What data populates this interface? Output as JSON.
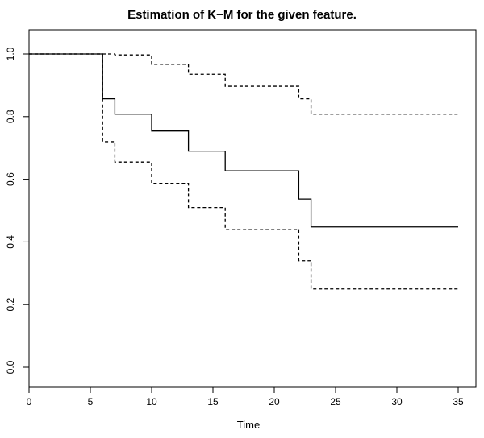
{
  "chart_data": {
    "type": "line",
    "title": "Estimation of K−M for the given feature.",
    "xlabel": "Time",
    "ylabel": "",
    "xlim": [
      0,
      35
    ],
    "ylim": [
      0,
      1
    ],
    "xticks": [
      "0",
      "5",
      "10",
      "15",
      "20",
      "25",
      "30",
      "35"
    ],
    "yticks": [
      "0.0",
      "0.2",
      "0.4",
      "0.6",
      "0.8",
      "1.0"
    ],
    "grid": false,
    "series": [
      {
        "style": "solid",
        "step": true,
        "x": [
          0,
          6,
          7,
          10,
          13,
          16,
          22,
          23,
          35
        ],
        "y": [
          1.0,
          0.857,
          0.808,
          0.754,
          0.69,
          0.627,
          0.537,
          0.448,
          0.448
        ]
      },
      {
        "style": "dashed",
        "step": true,
        "x": [
          0,
          7,
          10,
          13,
          16,
          22,
          23,
          35
        ],
        "y": [
          1.0,
          0.997,
          0.967,
          0.935,
          0.897,
          0.857,
          0.808,
          0.808
        ]
      },
      {
        "style": "dashed",
        "step": true,
        "x": [
          0,
          6,
          7,
          10,
          13,
          16,
          22,
          23,
          35
        ],
        "y": [
          1.0,
          0.72,
          0.655,
          0.587,
          0.51,
          0.44,
          0.34,
          0.25,
          0.25
        ]
      }
    ]
  }
}
